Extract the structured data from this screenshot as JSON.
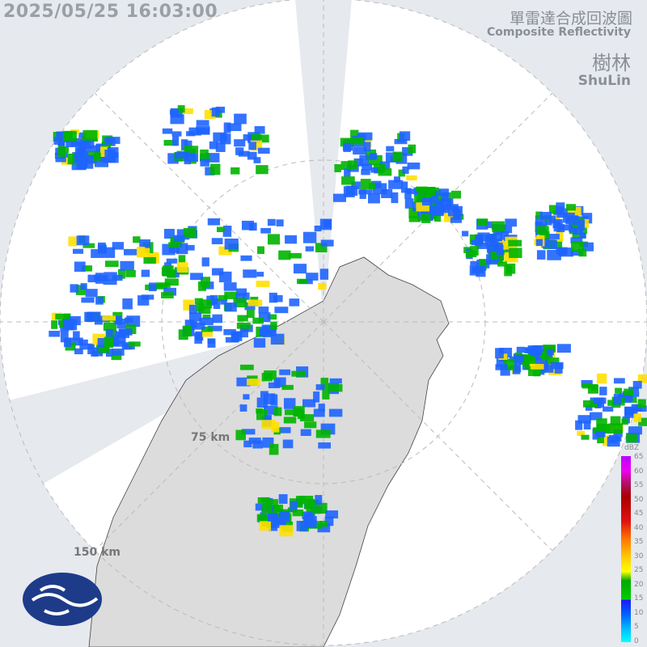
{
  "header": {
    "timestamp": "2025/05/25 16:03:00",
    "title_zh": "單雷達合成回波圖",
    "title_en": "Composite Reflectivity"
  },
  "station": {
    "name_zh": "樹林",
    "name_en": "ShuLin"
  },
  "range_rings": {
    "inner_label": "75 km",
    "outer_label": "150 km"
  },
  "legend": {
    "unit": "dBZ",
    "ticks": [
      "65",
      "60",
      "55",
      "50",
      "45",
      "40",
      "35",
      "30",
      "25",
      "20",
      "15",
      "10",
      "5",
      "0"
    ]
  },
  "logo": {
    "icon": "cwa-logo-icon",
    "color": "#1e3b8a"
  },
  "colors": {
    "coverage": "#ffffff",
    "blocked": "#e6e9ee",
    "land": "#dcdcdc",
    "echo_weak": "#1e64ff",
    "echo_mid": "#00b400",
    "echo_strong": "#ffe000"
  }
}
